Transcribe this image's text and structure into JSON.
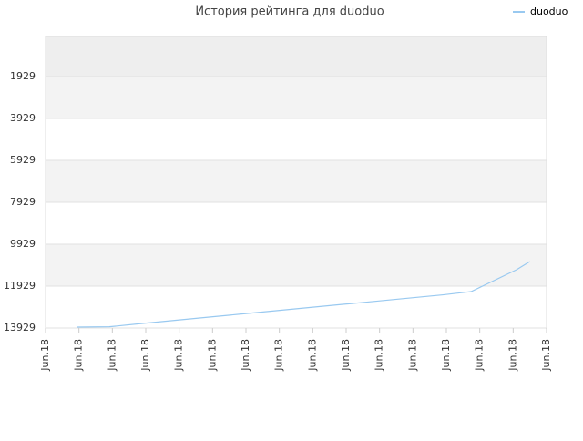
{
  "chart_data": {
    "type": "line",
    "title": "История рейтинга для duoduo",
    "x": [
      0.93,
      1.91,
      2.9,
      3.9,
      4.9,
      5.9,
      6.9,
      7.9,
      8.9,
      9.9,
      10.9,
      11.9,
      12.74,
      14.1,
      14.5
    ],
    "series": [
      {
        "name": "duoduo",
        "color": "#99c9f0",
        "values": [
          13886,
          13870,
          13712,
          13560,
          13408,
          13256,
          13104,
          12952,
          12800,
          12648,
          12496,
          12344,
          12190,
          11147,
          10755
        ]
      }
    ],
    "xlim": [
      0,
      15
    ],
    "xticks": [
      {
        "value": 0,
        "label": "Jun.18"
      },
      {
        "value": 1,
        "label": "Jun.18"
      },
      {
        "value": 2,
        "label": "Jun.18"
      },
      {
        "value": 3,
        "label": "Jun.18"
      },
      {
        "value": 4,
        "label": "Jun.18"
      },
      {
        "value": 5,
        "label": "Jun.18"
      },
      {
        "value": 6,
        "label": "Jun.18"
      },
      {
        "value": 7,
        "label": "Jun.18"
      },
      {
        "value": 8,
        "label": "Jun.18"
      },
      {
        "value": 9,
        "label": "Jun.18"
      },
      {
        "value": 10,
        "label": "Jun.18"
      },
      {
        "value": 11,
        "label": "Jun.18"
      },
      {
        "value": 12,
        "label": "Jun.18"
      },
      {
        "value": 13,
        "label": "Jun.18"
      },
      {
        "value": 14,
        "label": "Jun.18"
      },
      {
        "value": 15,
        "label": "Jun.18"
      }
    ],
    "ylim": [
      13929,
      16
    ],
    "yticks": [
      1929,
      3929,
      5929,
      7929,
      9929,
      11929,
      13929
    ],
    "grid": true,
    "legend": "top-right"
  }
}
